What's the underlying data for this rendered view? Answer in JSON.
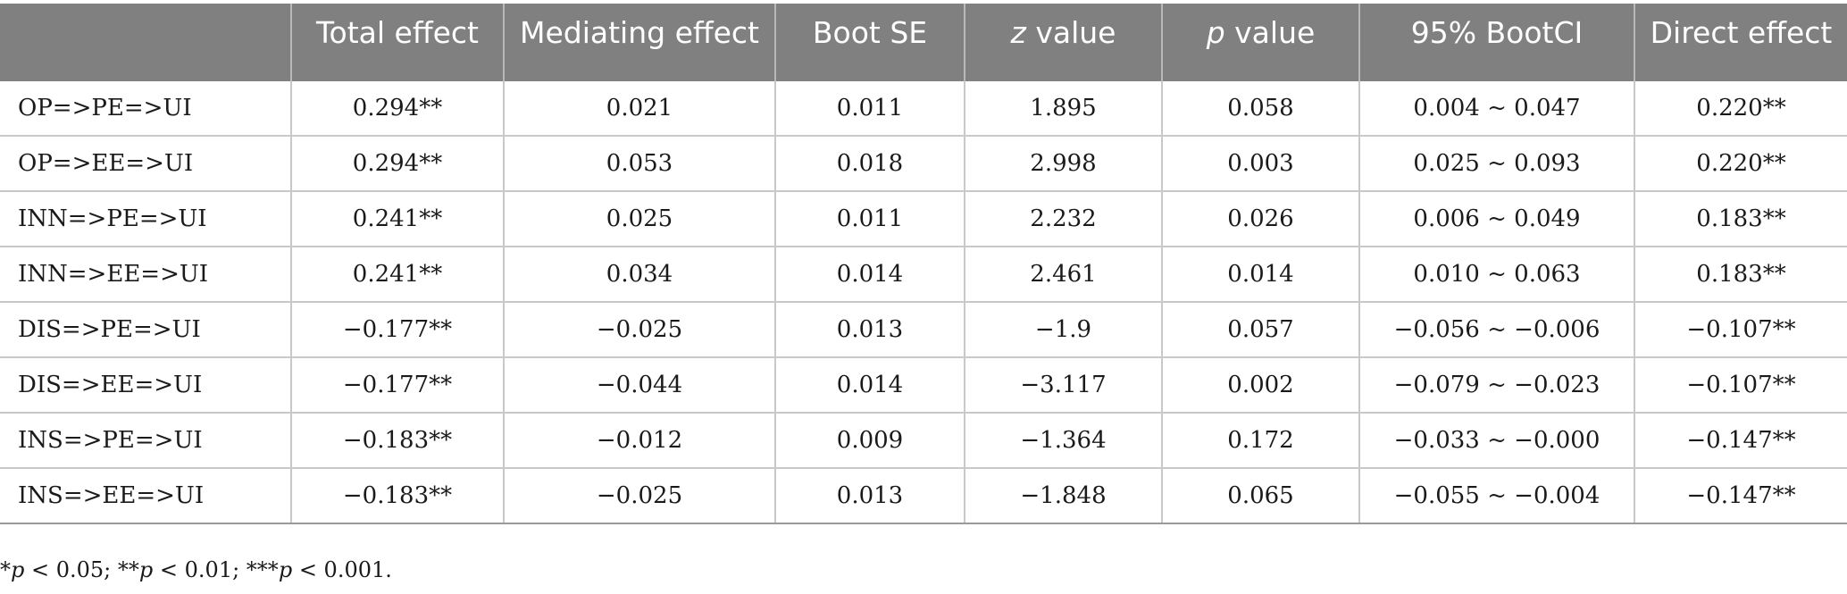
{
  "table": {
    "headers": [
      {
        "text": "",
        "italic": "",
        "rest": ""
      },
      {
        "text": "Total effect",
        "italic": "",
        "rest": ""
      },
      {
        "text": "Mediating effect",
        "italic": "",
        "rest": ""
      },
      {
        "text": "Boot SE",
        "italic": "",
        "rest": ""
      },
      {
        "text": "",
        "italic": "z",
        "rest": " value"
      },
      {
        "text": "",
        "italic": "p",
        "rest": " value"
      },
      {
        "text": "95% BootCI",
        "italic": "",
        "rest": ""
      },
      {
        "text": "Direct effect",
        "italic": "",
        "rest": ""
      }
    ],
    "rows": [
      [
        "OP=>PE=>UI",
        "0.294**",
        "0.021",
        "0.011",
        "1.895",
        "0.058",
        "0.004 ~ 0.047",
        "0.220**"
      ],
      [
        "OP=>EE=>UI",
        "0.294**",
        "0.053",
        "0.018",
        "2.998",
        "0.003",
        "0.025 ~ 0.093",
        "0.220**"
      ],
      [
        "INN=>PE=>UI",
        "0.241**",
        "0.025",
        "0.011",
        "2.232",
        "0.026",
        "0.006 ~ 0.049",
        "0.183**"
      ],
      [
        "INN=>EE=>UI",
        "0.241**",
        "0.034",
        "0.014",
        "2.461",
        "0.014",
        "0.010 ~ 0.063",
        "0.183**"
      ],
      [
        "DIS=>PE=>UI",
        "−0.177**",
        "−0.025",
        "0.013",
        "−1.9",
        "0.057",
        "−0.056 ~ −0.006",
        "−0.107**"
      ],
      [
        "DIS=>EE=>UI",
        "−0.177**",
        "−0.044",
        "0.014",
        "−3.117",
        "0.002",
        "−0.079 ~ −0.023",
        "−0.107**"
      ],
      [
        "INS=>PE=>UI",
        "−0.183**",
        "−0.012",
        "0.009",
        "−1.364",
        "0.172",
        "−0.033 ~ −0.000",
        "−0.147**"
      ],
      [
        "INS=>EE=>UI",
        "−0.183**",
        "−0.025",
        "0.013",
        "−1.848",
        "0.065",
        "−0.055 ~ −0.004",
        "−0.147**"
      ]
    ]
  },
  "footnote": {
    "parts": [
      {
        "text": "*",
        "italic": false
      },
      {
        "text": "p",
        "italic": true
      },
      {
        "text": " < 0.05; **",
        "italic": false
      },
      {
        "text": "p",
        "italic": true
      },
      {
        "text": " < 0.01; ***",
        "italic": false
      },
      {
        "text": "p",
        "italic": true
      },
      {
        "text": " < 0.001.",
        "italic": false
      }
    ]
  },
  "colors": {
    "header_bg": "#808080",
    "header_text": "#ffffff",
    "grid_line": "#c8c8c8",
    "body_text": "#1a1a1a"
  }
}
